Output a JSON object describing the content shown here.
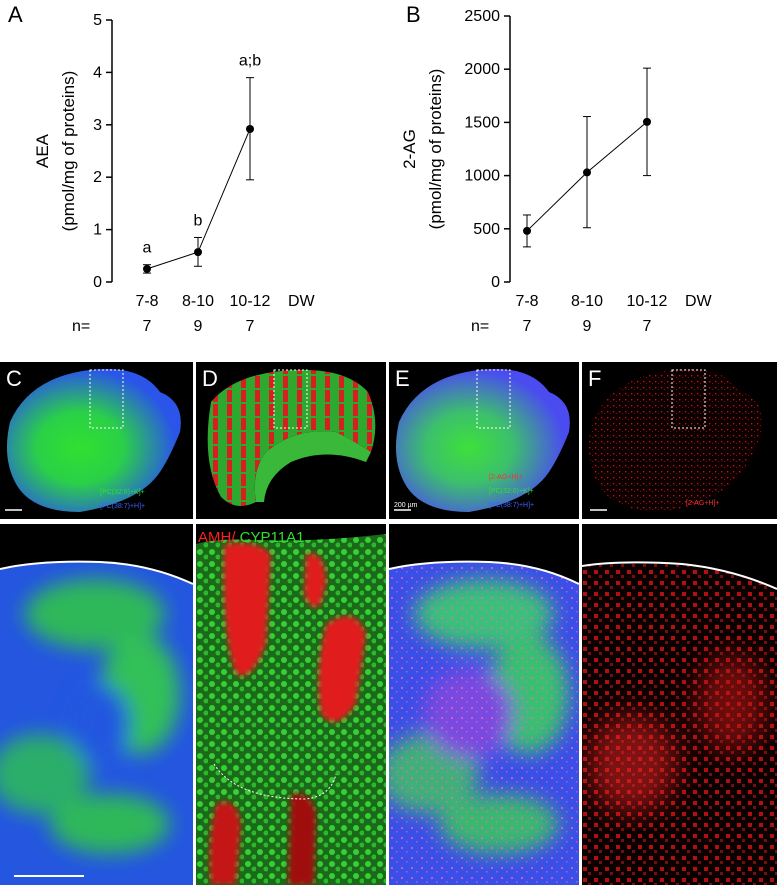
{
  "panels": {
    "A": "A",
    "B": "B",
    "C": "C",
    "D": "D",
    "E": "E",
    "F": "F"
  },
  "chart_data": [
    {
      "type": "line",
      "panel": "A",
      "ylabel": "AEA",
      "ylabel_unit": "(pmol/mg of proteins)",
      "categories": [
        "7-8",
        "8-10",
        "10-12"
      ],
      "x_suffix": "DW",
      "n_label": "n=",
      "n_values": [
        "7",
        "9",
        "7"
      ],
      "values": [
        0.25,
        0.57,
        2.92
      ],
      "err_low": [
        0.17,
        0.3,
        1.95
      ],
      "err_high": [
        0.33,
        0.85,
        3.9
      ],
      "annotations": [
        "a",
        "b",
        "a;b"
      ],
      "ylim": [
        0,
        5
      ],
      "yticks": [
        "0",
        "1",
        "2",
        "3",
        "4",
        "5"
      ],
      "grid": false
    },
    {
      "type": "line",
      "panel": "B",
      "ylabel": "2-AG",
      "ylabel_unit": "(pmol/mg of proteins)",
      "categories": [
        "7-8",
        "8-10",
        "10-12"
      ],
      "x_suffix": "DW",
      "n_label": "n=",
      "n_values": [
        "7",
        "9",
        "7"
      ],
      "values": [
        480,
        1030,
        1505
      ],
      "err_low": [
        330,
        510,
        1000
      ],
      "err_high": [
        630,
        1555,
        2010
      ],
      "ylim": [
        0,
        2500
      ],
      "yticks": [
        "0",
        "500",
        "1000",
        "1500",
        "2000",
        "2500"
      ],
      "grid": false
    }
  ],
  "legends": {
    "c_line1": "[PC(32:0)+K]+",
    "c_line2": "[PC(38:7)+H]+",
    "e_line1": "[2-AG+H]+",
    "e_line2": "[PC(32:0)+K]+",
    "e_line3": "[PC(38:7)+H]+",
    "e_scale": "200 µm",
    "f_line1": "[2-AG+H]+"
  },
  "stain_label": {
    "amh": "AMH/",
    "cyp": " CYP11A1"
  },
  "colors": {
    "green": "#22d52a",
    "blue": "#2440ff",
    "red": "#e8161a",
    "dark": "#000000"
  }
}
